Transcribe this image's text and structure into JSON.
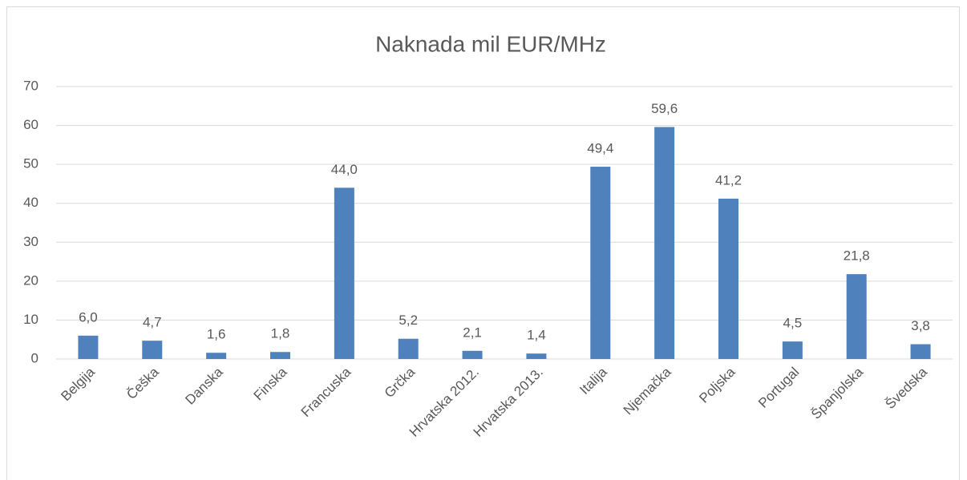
{
  "chart_data": {
    "type": "bar",
    "title": "Naknada mil EUR/MHz",
    "categories": [
      "Belgija",
      "Češka",
      "Danska",
      "Finska",
      "Francuska",
      "Grčka",
      "Hrvatska 2012.",
      "Hrvatska 2013.",
      "Italija",
      "Njemačka",
      "Poljska",
      "Portugal",
      "Španjolska",
      "Švedska"
    ],
    "values": [
      6.0,
      4.7,
      1.6,
      1.8,
      44.0,
      5.2,
      2.1,
      1.4,
      49.4,
      59.6,
      41.2,
      4.5,
      21.8,
      3.8
    ],
    "value_labels": [
      "6,0",
      "4,7",
      "1,6",
      "1,8",
      "44,0",
      "5,2",
      "2,1",
      "1,4",
      "49,4",
      "59,6",
      "41,2",
      "4,5",
      "21,8",
      "3,8"
    ],
    "color": "#4f81bd",
    "ylim": [
      0,
      70
    ],
    "yticks": [
      0,
      10,
      20,
      30,
      40,
      50,
      60,
      70
    ],
    "grid": true
  }
}
